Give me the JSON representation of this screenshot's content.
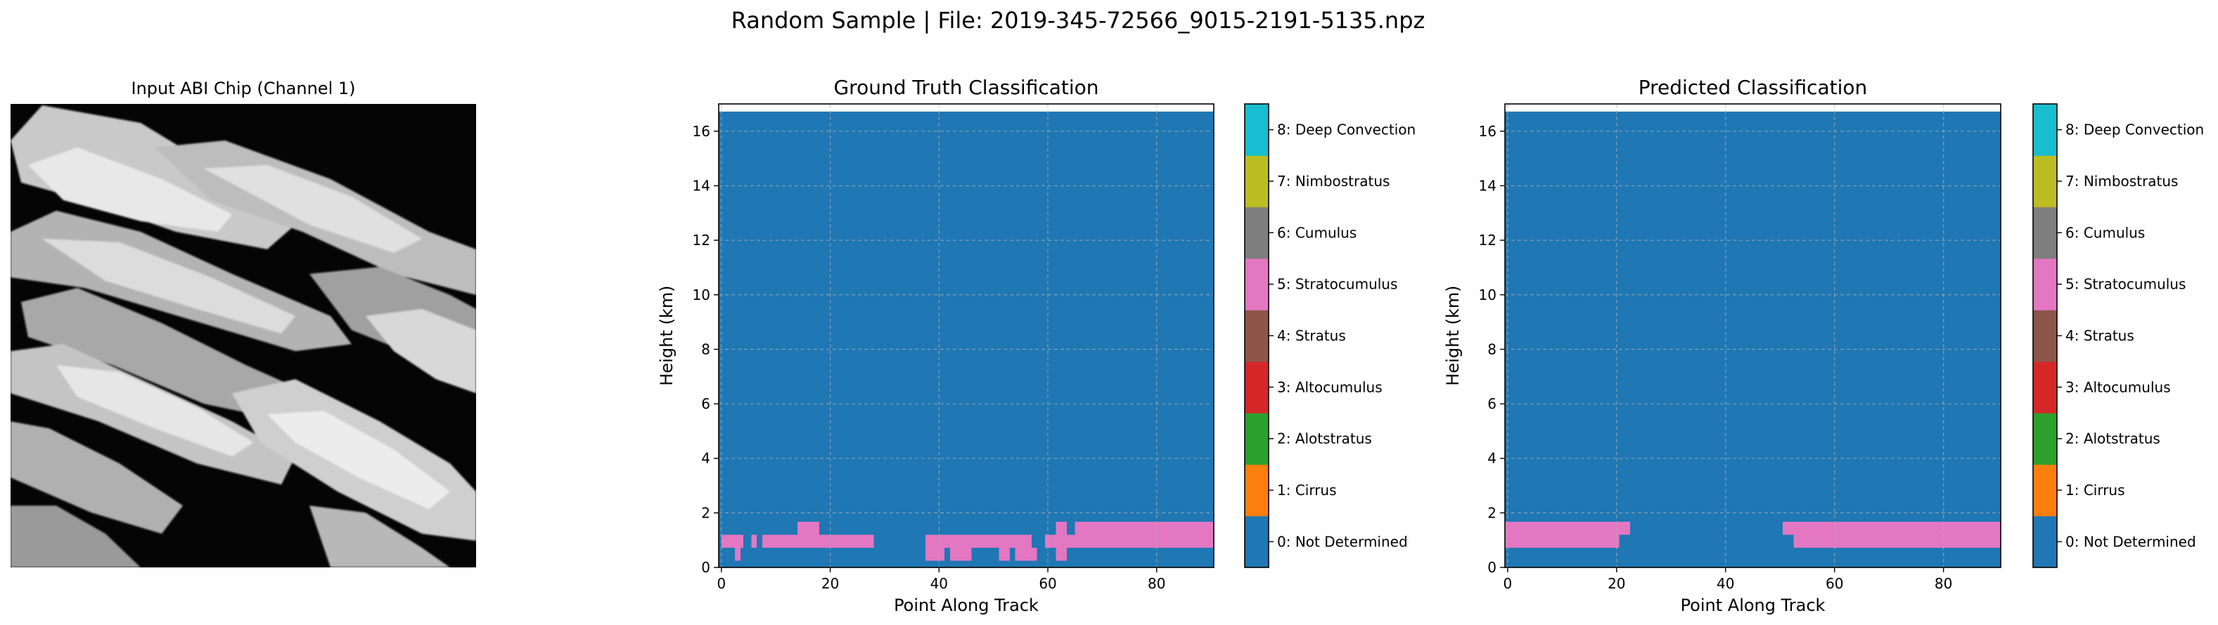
{
  "figure": {
    "suptitle": "Random Sample | File: 2019-345-72566_9015-2191-5135.npz"
  },
  "image_panel": {
    "title": "Input ABI Chip (Channel 1)",
    "colormap": "gray"
  },
  "chart_data": [
    {
      "type": "heatmap",
      "title": "Ground Truth Classification",
      "xlabel": "Point Along Track",
      "ylabel": "Height (km)",
      "xlim": [
        -0.5,
        90.5
      ],
      "ylim": [
        0,
        17
      ],
      "y_data_top": 16.72,
      "xticks": [
        0,
        20,
        40,
        60,
        80
      ],
      "yticks": [
        0,
        2,
        4,
        6,
        8,
        10,
        12,
        14,
        16
      ],
      "grid": true,
      "background_class": 0,
      "cells": [
        {
          "x0": 0,
          "x1": 4,
          "y0": 0.72,
          "y1": 1.2,
          "class": 5
        },
        {
          "x0": 2.5,
          "x1": 3.5,
          "y0": 0.24,
          "y1": 0.72,
          "class": 5
        },
        {
          "x0": 5.5,
          "x1": 6.5,
          "y0": 0.72,
          "y1": 1.2,
          "class": 5
        },
        {
          "x0": 7.5,
          "x1": 28,
          "y0": 0.72,
          "y1": 1.2,
          "class": 5
        },
        {
          "x0": 14,
          "x1": 18,
          "y0": 1.2,
          "y1": 1.68,
          "class": 5
        },
        {
          "x0": 37.5,
          "x1": 41,
          "y0": 0.24,
          "y1": 0.72,
          "class": 5
        },
        {
          "x0": 37.5,
          "x1": 57,
          "y0": 0.72,
          "y1": 1.2,
          "class": 5
        },
        {
          "x0": 42,
          "x1": 46,
          "y0": 0.24,
          "y1": 0.72,
          "class": 5
        },
        {
          "x0": 51,
          "x1": 53,
          "y0": 0.24,
          "y1": 0.72,
          "class": 5
        },
        {
          "x0": 54,
          "x1": 58,
          "y0": 0.24,
          "y1": 0.72,
          "class": 5
        },
        {
          "x0": 59.5,
          "x1": 90.5,
          "y0": 0.72,
          "y1": 1.2,
          "class": 5
        },
        {
          "x0": 61.5,
          "x1": 63.5,
          "y0": 0.24,
          "y1": 0.72,
          "class": 5
        },
        {
          "x0": 61.5,
          "x1": 63.5,
          "y0": 1.2,
          "y1": 1.68,
          "class": 5
        },
        {
          "x0": 65,
          "x1": 90.5,
          "y0": 1.2,
          "y1": 1.68,
          "class": 5
        }
      ]
    },
    {
      "type": "heatmap",
      "title": "Predicted Classification",
      "xlabel": "Point Along Track",
      "ylabel": "Height (km)",
      "xlim": [
        -0.5,
        90.5
      ],
      "ylim": [
        0,
        17
      ],
      "y_data_top": 16.72,
      "xticks": [
        0,
        20,
        40,
        60,
        80
      ],
      "yticks": [
        0,
        2,
        4,
        6,
        8,
        10,
        12,
        14,
        16
      ],
      "grid": true,
      "background_class": 0,
      "cells": [
        {
          "x0": -0.5,
          "x1": 20.5,
          "y0": 0.72,
          "y1": 1.2,
          "class": 5
        },
        {
          "x0": -0.5,
          "x1": 22.5,
          "y0": 1.2,
          "y1": 1.68,
          "class": 5
        },
        {
          "x0": 52.5,
          "x1": 90.5,
          "y0": 0.72,
          "y1": 1.2,
          "class": 5
        },
        {
          "x0": 50.5,
          "x1": 90.5,
          "y0": 1.2,
          "y1": 1.68,
          "class": 5
        }
      ]
    }
  ],
  "colorbar": {
    "classes": [
      {
        "label": "0: Not Determined",
        "color": "#1f77b4"
      },
      {
        "label": "1: Cirrus",
        "color": "#ff7f0e"
      },
      {
        "label": "2: Alotstratus",
        "color": "#2ca02c"
      },
      {
        "label": "3: Altocumulus",
        "color": "#d62728"
      },
      {
        "label": "4: Stratus",
        "color": "#8c564b"
      },
      {
        "label": "5: Stratocumulus",
        "color": "#e377c2"
      },
      {
        "label": "6: Cumulus",
        "color": "#7f7f7f"
      },
      {
        "label": "7: Nimbostratus",
        "color": "#bcbd22"
      },
      {
        "label": "8: Deep Convection",
        "color": "#17becf"
      }
    ]
  }
}
